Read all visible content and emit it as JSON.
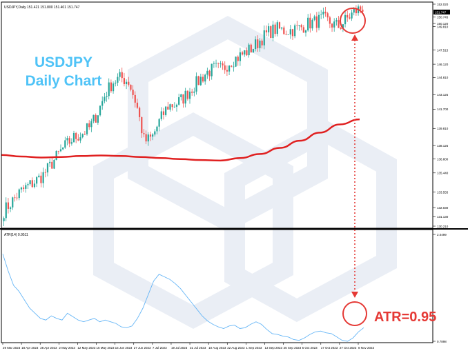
{
  "overlay": {
    "title_line1": "USDJPY",
    "title_line2": "Daily Chart",
    "atr_note": "ATR=0.95"
  },
  "colors": {
    "bull": "#26a69a",
    "bear": "#ef5350",
    "ma_line": "#e02020",
    "atr_line": "#64b5f6",
    "annotation": "#e53935",
    "title": "#4fc3f7"
  },
  "chart_data": [
    {
      "type": "candlestick",
      "header": "USDJPY,Daily  151.421 151.800 151.401 151.747",
      "ylim": [
        130.21,
        152.02
      ],
      "y_ticks": [
        "152.020",
        "150.745",
        "150.120",
        "149.810",
        "147.515",
        "146.120",
        "144.810",
        "143.125",
        "141.700",
        "139.810",
        "138.125",
        "136.800",
        "135.440",
        "133.555",
        "132.030",
        "131.130",
        "130.210"
      ],
      "current_price": "151.747",
      "indicator": "200-day moving average (red line)",
      "ma_values": [
        137.2,
        137.05,
        136.95,
        137.0,
        137.1,
        137.15,
        137.1,
        137.0,
        136.9,
        136.8,
        136.7,
        136.65,
        136.9,
        137.3,
        137.9,
        138.6,
        139.4,
        140.2,
        140.7
      ],
      "close_path": [
        131.7,
        132.6,
        133.5,
        134.1,
        134.6,
        135.2,
        136.2,
        137.3,
        138.2,
        138.9,
        139.3,
        139.9,
        141.3,
        143.2,
        144.4,
        144.8,
        144.4,
        142.2,
        138.5,
        138.9,
        140.6,
        142.0,
        142.2,
        142.8,
        143.7,
        144.5,
        145.3,
        145.7,
        145.6,
        146.4,
        146.8,
        147.3,
        147.8,
        148.6,
        149.3,
        149.6,
        149.4,
        149.5,
        149.7,
        150.1,
        150.3,
        150.6,
        150.1,
        149.8,
        150.6,
        151.3,
        151.7
      ],
      "annotation": "red circle around the latest daily candles"
    },
    {
      "type": "line",
      "label": "ATR(14) 0.9511",
      "ylim": [
        0.7898,
        2.0499
      ],
      "y_ticks": [
        "2.0499",
        "0.7898"
      ],
      "values": [
        1.82,
        1.62,
        1.45,
        1.38,
        1.28,
        1.18,
        1.12,
        1.06,
        1.04,
        1.09,
        1.06,
        1.04,
        1.12,
        1.08,
        1.04,
        1.02,
        1.04,
        1.06,
        1.02,
        1.04,
        1.02,
        1.0,
        0.96,
        0.95,
        0.97,
        1.06,
        1.18,
        1.34,
        1.5,
        1.58,
        1.55,
        1.52,
        1.47,
        1.41,
        1.33,
        1.25,
        1.17,
        1.09,
        1.03,
        0.99,
        0.96,
        0.94,
        0.97,
        0.98,
        0.94,
        0.95,
        0.99,
        1.02,
        0.99,
        0.93,
        0.88,
        0.87,
        0.85,
        0.84,
        0.81,
        0.8,
        0.83,
        0.87,
        0.9,
        0.91,
        0.89,
        0.88,
        0.84,
        0.8,
        0.79,
        0.83,
        0.9,
        0.95
      ],
      "annotation": "red circle at latest ATR reading with dotted arrow from price panel"
    }
  ],
  "x_labels": [
    "29 Mar 2023",
    "18 Apr 2023",
    "28 Apr 2023",
    "2 May 2023",
    "12 May 2023",
    "15 May 2023",
    "15 Jun 2023",
    "27 Jun 2023",
    "7 Jul 2023",
    "19 Jul 2023",
    "31 Jul 2023",
    "10 Aug 2023",
    "22 Aug 2023",
    "1 Sep 2023",
    "13 Sep 2023",
    "25 Sep 2023",
    "5 Oct 2023",
    "17 Oct 2023",
    "27 Oct 2023",
    "8 Nov 2023"
  ]
}
